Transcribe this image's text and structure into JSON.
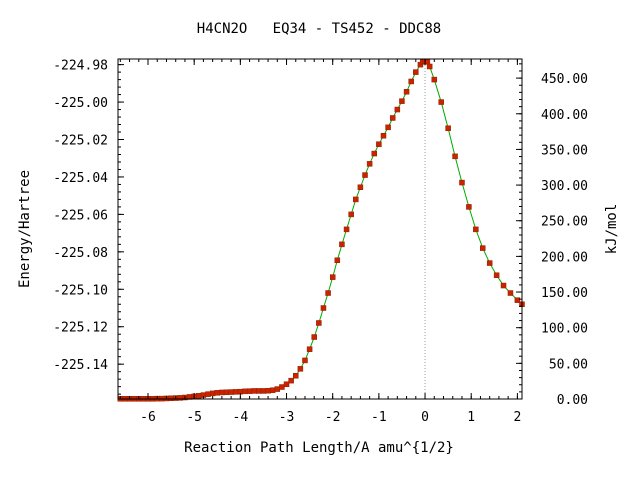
{
  "chart_data": {
    "type": "line",
    "title": "H4CN2O   EQ34 - TS452 - DDC88",
    "xlabel": "Reaction Path Length/A amu^{1/2}",
    "ylabel": "Energy/Hartree",
    "y2label": "kJ/mol",
    "xlim": [
      -6.65,
      2.1
    ],
    "ylim": [
      -225.1586,
      -224.977
    ],
    "y2lim": [
      0,
      476.8
    ],
    "x_ticks": [
      -6,
      -5,
      -4,
      -3,
      -2,
      -1,
      0,
      1,
      2
    ],
    "x_tick_labels": [
      "-6",
      "-5",
      "-4",
      "-3",
      "-2",
      "-1",
      "0",
      "1",
      "2"
    ],
    "y_ticks": [
      -224.98,
      -225.0,
      -225.02,
      -225.04,
      -225.06,
      -225.08,
      -225.1,
      -225.12,
      -225.14
    ],
    "y_tick_labels": [
      "-224.98",
      "-225.00",
      "-225.02",
      "-225.04",
      "-225.06",
      "-225.08",
      "-225.10",
      "-225.12",
      "-225.14"
    ],
    "y2_ticks": [
      0,
      50,
      100,
      150,
      200,
      250,
      300,
      350,
      400,
      450
    ],
    "y2_tick_labels": [
      "0.00",
      "50.00",
      "100.00",
      "150.00",
      "200.00",
      "250.00",
      "300.00",
      "350.00",
      "400.00",
      "450.00"
    ],
    "ts_marker_x": 0,
    "grid": false,
    "colors": {
      "line": "#00aa00",
      "marker": "#cc2200",
      "ts_line": "#999999"
    },
    "series": [
      {
        "x": [
          -6.6,
          -6.5,
          -6.4,
          -6.3,
          -6.2,
          -6.1,
          -6.0,
          -5.9,
          -5.8,
          -5.7,
          -5.6,
          -5.5,
          -5.4,
          -5.3,
          -5.2,
          -5.1,
          -5.0,
          -4.9,
          -4.8,
          -4.7,
          -4.6,
          -4.5,
          -4.4,
          -4.3,
          -4.2,
          -4.1,
          -4.0,
          -3.9,
          -3.8,
          -3.7,
          -3.6,
          -3.5,
          -3.4,
          -3.3,
          -3.2,
          -3.1,
          -3.0,
          -2.9,
          -2.8,
          -2.7,
          -2.6,
          -2.5,
          -2.4,
          -2.3,
          -2.2,
          -2.1,
          -2.0,
          -1.9,
          -1.8,
          -1.7,
          -1.6,
          -1.5,
          -1.4,
          -1.3,
          -1.2,
          -1.1,
          -1.0,
          -0.9,
          -0.8,
          -0.7,
          -0.6,
          -0.5,
          -0.4,
          -0.3,
          -0.2,
          -0.1,
          -0.05,
          0.0,
          0.05,
          0.1,
          0.2,
          0.35,
          0.5,
          0.65,
          0.8,
          0.95,
          1.1,
          1.25,
          1.4,
          1.55,
          1.7,
          1.85,
          2.0,
          2.1
        ],
        "y": [
          -225.1585,
          -225.1585,
          -225.1585,
          -225.1585,
          -225.1585,
          -225.1585,
          -225.1585,
          -225.1585,
          -225.1584,
          -225.1584,
          -225.1583,
          -225.1582,
          -225.1581,
          -225.158,
          -225.1578,
          -225.1575,
          -225.1572,
          -225.1569,
          -225.1565,
          -225.156,
          -225.1556,
          -225.1553,
          -225.1551,
          -225.155,
          -225.1549,
          -225.1548,
          -225.1547,
          -225.1545,
          -225.1544,
          -225.1543,
          -225.1543,
          -225.1543,
          -225.1542,
          -225.1539,
          -225.1533,
          -225.1522,
          -225.1507,
          -225.1488,
          -225.1462,
          -225.1425,
          -225.138,
          -225.132,
          -225.1255,
          -225.118,
          -225.11,
          -225.102,
          -225.0935,
          -225.0845,
          -225.076,
          -225.068,
          -225.06,
          -225.052,
          -225.0455,
          -225.039,
          -225.033,
          -225.0275,
          -225.0225,
          -225.018,
          -225.0135,
          -225.0085,
          -225.004,
          -224.9995,
          -224.9945,
          -224.989,
          -224.984,
          -224.98,
          -224.9785,
          -224.9782,
          -224.9785,
          -224.981,
          -224.988,
          -225.0,
          -225.014,
          -225.029,
          -225.043,
          -225.056,
          -225.068,
          -225.078,
          -225.086,
          -225.0925,
          -225.098,
          -225.102,
          -225.1058,
          -225.108
        ]
      }
    ]
  }
}
